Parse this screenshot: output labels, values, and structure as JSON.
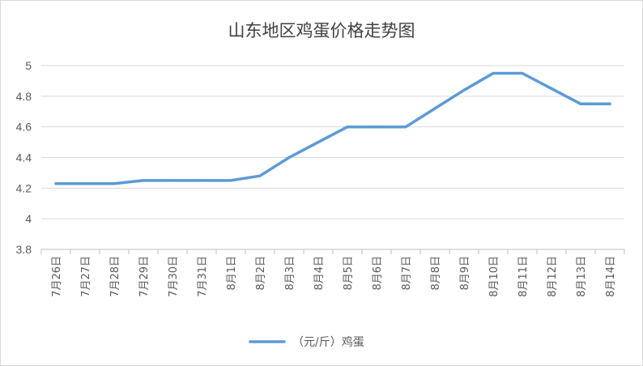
{
  "chart_data": {
    "type": "line",
    "title": "山东地区鸡蛋价格走势图",
    "xlabel": "",
    "ylabel": "",
    "categories": [
      "7月26日",
      "7月27日",
      "7月28日",
      "7月29日",
      "7月30日",
      "7月31日",
      "8月1日",
      "8月2日",
      "8月3日",
      "8月4日",
      "8月5日",
      "8月6日",
      "8月7日",
      "8月8日",
      "8月9日",
      "8月10日",
      "8月11日",
      "8月12日",
      "8月13日",
      "8月14日"
    ],
    "series": [
      {
        "name": "（元/斤）鸡蛋",
        "values": [
          4.23,
          4.23,
          4.23,
          4.25,
          4.25,
          4.25,
          4.25,
          4.28,
          4.4,
          4.5,
          4.6,
          4.6,
          4.6,
          4.72,
          4.84,
          4.95,
          4.95,
          4.85,
          4.75,
          4.75
        ]
      }
    ],
    "ylim": [
      3.8,
      5.0
    ],
    "yticks": [
      "3.8",
      "4",
      "4.2",
      "4.4",
      "4.6",
      "4.8",
      "5"
    ],
    "ytick_values": [
      3.8,
      4.0,
      4.2,
      4.4,
      4.6,
      4.8,
      5.0
    ],
    "grid": true,
    "legend_position": "bottom",
    "colors": {
      "line": "#5b9bd5",
      "grid": "#d9d9d9",
      "axis": "#bfbfbf",
      "title": "#404040"
    }
  }
}
